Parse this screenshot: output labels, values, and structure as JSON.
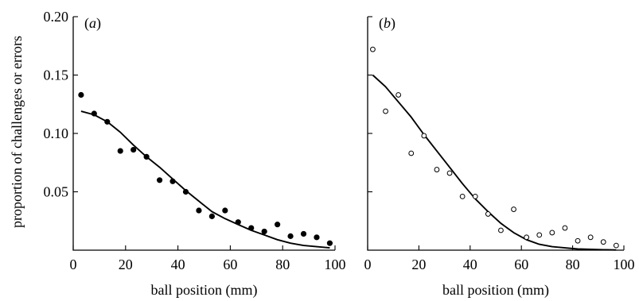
{
  "colors": {
    "ink": "#000000",
    "background": "#ffffff"
  },
  "ylabel": "proportion of challenges or errors",
  "chart_data": [
    {
      "type": "scatter",
      "panel_label": "a",
      "xlabel": "ball position (mm)",
      "ylabel": "proportion of challenges or errors",
      "xlim": [
        0,
        100
      ],
      "ylim": [
        0,
        0.2
      ],
      "xticks": [
        0,
        20,
        40,
        60,
        80,
        100
      ],
      "xtick_labels": [
        "0",
        "20",
        "40",
        "60",
        "80",
        "100"
      ],
      "yticks": [
        0.05,
        0.1,
        0.15,
        0.2
      ],
      "ytick_labels": [
        "0.05",
        "0.10",
        "0.15",
        "0.20"
      ],
      "grid": false,
      "series": [
        {
          "kind": "points",
          "marker": "filled-circle",
          "x": [
            3,
            8,
            13,
            18,
            23,
            28,
            33,
            38,
            43,
            48,
            53,
            58,
            63,
            68,
            73,
            78,
            83,
            88,
            93,
            98
          ],
          "y": [
            0.133,
            0.117,
            0.11,
            0.085,
            0.086,
            0.08,
            0.06,
            0.059,
            0.05,
            0.034,
            0.029,
            0.034,
            0.024,
            0.019,
            0.016,
            0.022,
            0.012,
            0.014,
            0.011,
            0.006
          ]
        },
        {
          "kind": "fit-line",
          "x": [
            3,
            8,
            13,
            18,
            23,
            28,
            33,
            38,
            43,
            48,
            53,
            58,
            63,
            68,
            73,
            78,
            83,
            88,
            93,
            98
          ],
          "y": [
            0.119,
            0.116,
            0.11,
            0.101,
            0.09,
            0.08,
            0.071,
            0.061,
            0.051,
            0.042,
            0.033,
            0.027,
            0.022,
            0.017,
            0.013,
            0.009,
            0.006,
            0.004,
            0.003,
            0.002
          ]
        }
      ]
    },
    {
      "type": "scatter",
      "panel_label": "b",
      "xlabel": "ball position (mm)",
      "xlim": [
        0,
        100
      ],
      "ylim": [
        0,
        0.2
      ],
      "xticks": [
        0,
        20,
        40,
        60,
        80,
        100
      ],
      "xtick_labels": [
        "0",
        "20",
        "40",
        "60",
        "80",
        "100"
      ],
      "yticks": [
        0.05,
        0.1,
        0.15,
        0.2
      ],
      "ytick_labels": [],
      "grid": false,
      "series": [
        {
          "kind": "points",
          "marker": "open-circle",
          "x": [
            2,
            7,
            12,
            17,
            22,
            27,
            32,
            37,
            42,
            47,
            52,
            57,
            62,
            67,
            72,
            77,
            82,
            87,
            92,
            97
          ],
          "y": [
            0.172,
            0.119,
            0.133,
            0.083,
            0.098,
            0.069,
            0.066,
            0.046,
            0.046,
            0.031,
            0.017,
            0.035,
            0.011,
            0.013,
            0.015,
            0.019,
            0.008,
            0.011,
            0.007,
            0.004
          ]
        },
        {
          "kind": "fit-line",
          "x": [
            2,
            7,
            12,
            17,
            22,
            27,
            32,
            37,
            42,
            47,
            52,
            57,
            62,
            67,
            72,
            77,
            82,
            87,
            92,
            97
          ],
          "y": [
            0.15,
            0.14,
            0.127,
            0.114,
            0.099,
            0.085,
            0.071,
            0.057,
            0.044,
            0.033,
            0.023,
            0.015,
            0.009,
            0.005,
            0.003,
            0.002,
            0.001,
            0.0007,
            0.0004,
            0.0002
          ]
        }
      ]
    }
  ]
}
